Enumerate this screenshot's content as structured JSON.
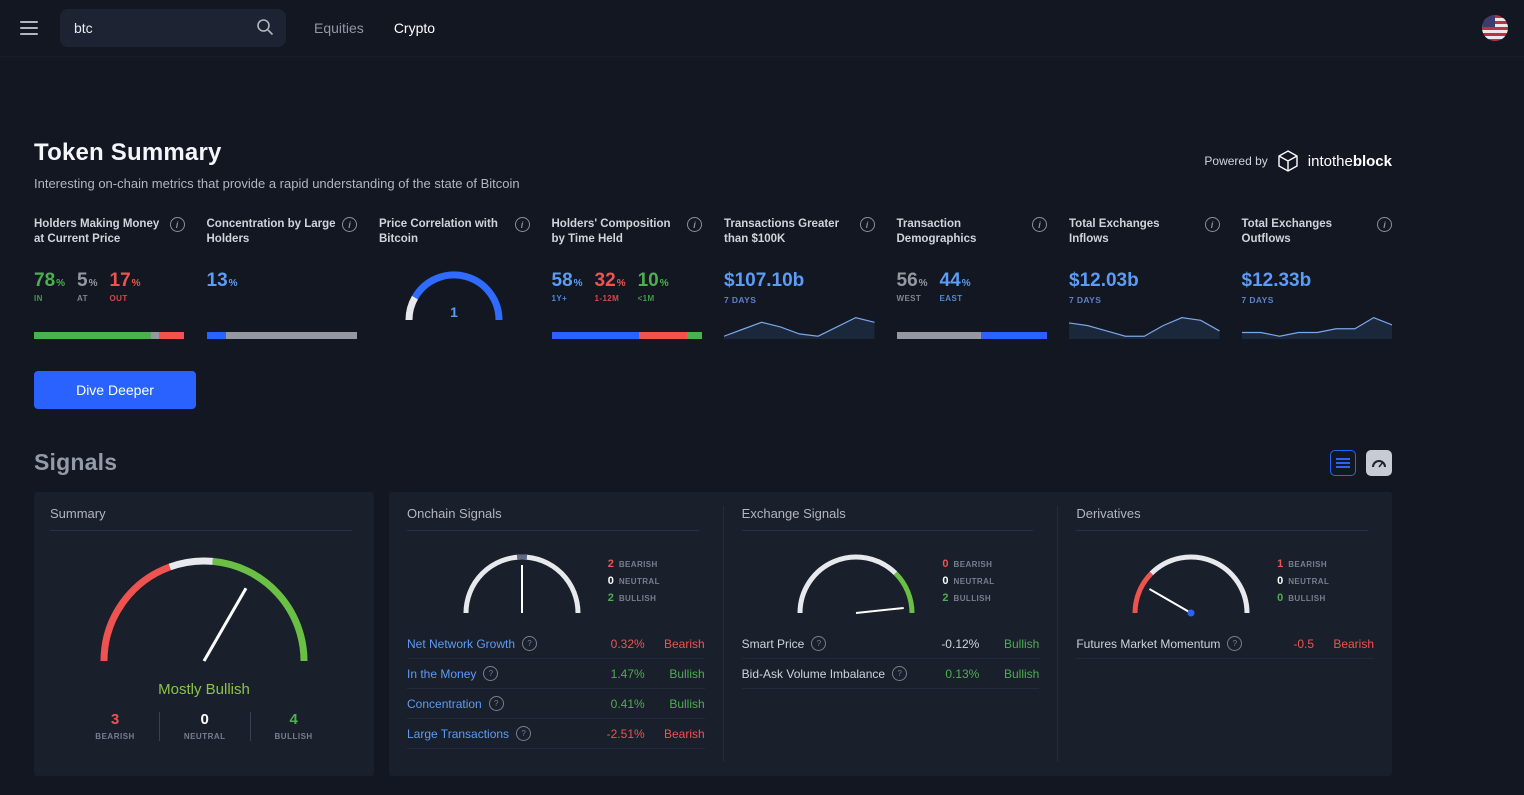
{
  "colors": {
    "accent_blue": "#2962ff",
    "positive_green": "#4caf50",
    "negative_red": "#ef5350",
    "value_blue": "#5b9cf6",
    "neutral_gray": "#9598a1"
  },
  "topbar": {
    "search_value": "btc",
    "tabs": [
      {
        "label": "Equities"
      },
      {
        "label": "Crypto"
      }
    ]
  },
  "token_summary": {
    "title": "Token Summary",
    "subtitle": "Interesting on-chain metrics that provide a rapid understanding of the state of Bitcoin",
    "powered_by_label": "Powered by",
    "brand_light": "intothe",
    "brand_bold": "block",
    "dive_deeper_label": "Dive Deeper",
    "cards": [
      {
        "title": "Holders Making Money at Current Price",
        "stats": [
          {
            "value": "78",
            "suffix": "%",
            "label": "IN",
            "color": "#4caf50"
          },
          {
            "value": "5",
            "suffix": "%",
            "label": "AT",
            "color": "#9598a1"
          },
          {
            "value": "17",
            "suffix": "%",
            "label": "OUT",
            "color": "#ef5350"
          }
        ],
        "bar": [
          {
            "pct": 78,
            "color": "#4caf50"
          },
          {
            "pct": 5,
            "color": "#9598a1"
          },
          {
            "pct": 17,
            "color": "#ef5350"
          }
        ]
      },
      {
        "title": "Concentration by Large Holders",
        "stats": [
          {
            "value": "13",
            "suffix": "%",
            "label": "",
            "color": "#5b9cf6"
          }
        ],
        "bar": [
          {
            "pct": 13,
            "color": "#2962ff"
          },
          {
            "pct": 87,
            "color": "#9598a1"
          }
        ]
      },
      {
        "title": "Price Correlation with Bitcoin",
        "gauge_value": "1"
      },
      {
        "title": "Holders' Composition by Time Held",
        "stats": [
          {
            "value": "58",
            "suffix": "%",
            "label": "1Y+",
            "color": "#5b9cf6"
          },
          {
            "value": "32",
            "suffix": "%",
            "label": "1-12M",
            "color": "#ef5350"
          },
          {
            "value": "10",
            "suffix": "%",
            "label": "<1M",
            "color": "#4caf50"
          }
        ],
        "bar": [
          {
            "pct": 58,
            "color": "#2962ff"
          },
          {
            "pct": 32,
            "color": "#ef5350"
          },
          {
            "pct": 10,
            "color": "#4caf50"
          }
        ]
      },
      {
        "title": "Transactions Greater than $100K",
        "big_value": "$107.10b",
        "caption": "7 DAYS",
        "spark": [
          2,
          5,
          8,
          6,
          3,
          2,
          6,
          10,
          8
        ]
      },
      {
        "title": "Transaction Demographics",
        "stats": [
          {
            "value": "56",
            "suffix": "%",
            "label": "WEST",
            "color": "#9598a1"
          },
          {
            "value": "44",
            "suffix": "%",
            "label": "EAST",
            "color": "#5b9cf6"
          }
        ],
        "bar": [
          {
            "pct": 56,
            "color": "#9598a1"
          },
          {
            "pct": 44,
            "color": "#2962ff"
          }
        ]
      },
      {
        "title": "Total Exchanges Inflows",
        "big_value": "$12.03b",
        "caption": "7 DAYS",
        "spark": [
          8,
          7,
          5,
          3,
          3,
          7,
          10,
          9,
          5
        ]
      },
      {
        "title": "Total Exchanges Outflows",
        "big_value": "$12.33b",
        "caption": "7 DAYS",
        "spark": [
          4,
          4,
          3,
          4,
          4,
          5,
          5,
          8,
          6
        ]
      }
    ]
  },
  "signals": {
    "title": "Signals",
    "summary": {
      "title": "Summary",
      "sentiment": "Mostly Bullish",
      "sentiment_color": "#8bc34a",
      "needle_deg": 30,
      "counts": [
        {
          "value": "3",
          "label": "BEARISH",
          "color": "#ef5350"
        },
        {
          "value": "0",
          "label": "NEUTRAL",
          "color": "#ffffff"
        },
        {
          "value": "4",
          "label": "BULLISH",
          "color": "#4caf50"
        }
      ]
    },
    "panels": [
      {
        "title": "Onchain Signals",
        "needle_deg": 0,
        "counts": [
          {
            "value": "2",
            "label": "BEARISH",
            "color": "#ef5350"
          },
          {
            "value": "0",
            "label": "NEUTRAL",
            "color": "#ffffff"
          },
          {
            "value": "2",
            "label": "BULLISH",
            "color": "#4caf50"
          }
        ],
        "rows": [
          {
            "label": "Net Network Growth",
            "link": true,
            "value": "0.32%",
            "value_color": "#ef5350",
            "signal": "Bearish",
            "signal_color": "#ef5350"
          },
          {
            "label": "In the Money",
            "link": true,
            "value": "1.47%",
            "value_color": "#4caf50",
            "signal": "Bullish",
            "signal_color": "#4caf50"
          },
          {
            "label": "Concentration",
            "link": true,
            "value": "0.41%",
            "value_color": "#4caf50",
            "signal": "Bullish",
            "signal_color": "#4caf50"
          },
          {
            "label": "Large Transactions",
            "link": true,
            "value": "-2.51%",
            "value_color": "#ef5350",
            "signal": "Bearish",
            "signal_color": "#ef5350"
          }
        ]
      },
      {
        "title": "Exchange Signals",
        "needle_deg": 84,
        "counts": [
          {
            "value": "0",
            "label": "BEARISH",
            "color": "#ef5350"
          },
          {
            "value": "0",
            "label": "NEUTRAL",
            "color": "#ffffff"
          },
          {
            "value": "2",
            "label": "BULLISH",
            "color": "#4caf50"
          }
        ],
        "rows": [
          {
            "label": "Smart Price",
            "link": false,
            "value": "-0.12%",
            "value_color": "#d1d4dc",
            "signal": "Bullish",
            "signal_color": "#4caf50"
          },
          {
            "label": "Bid-Ask Volume Imbalance",
            "link": false,
            "value": "0.13%",
            "value_color": "#4caf50",
            "signal": "Bullish",
            "signal_color": "#4caf50"
          }
        ]
      },
      {
        "title": "Derivatives",
        "needle_deg": -60,
        "counts": [
          {
            "value": "1",
            "label": "BEARISH",
            "color": "#ef5350"
          },
          {
            "value": "0",
            "label": "NEUTRAL",
            "color": "#ffffff"
          },
          {
            "value": "0",
            "label": "BULLISH",
            "color": "#4caf50"
          }
        ],
        "rows": [
          {
            "label": "Futures Market Momentum",
            "link": false,
            "value": "-0.5",
            "value_color": "#ef5350",
            "signal": "Bearish",
            "signal_color": "#ef5350"
          }
        ]
      }
    ]
  }
}
